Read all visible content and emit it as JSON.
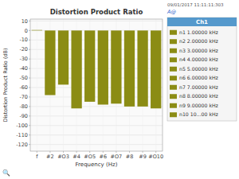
{
  "chart_data": {
    "type": "bar",
    "title": "Distortion Product Ratio",
    "xlabel": "Frequency (Hz)",
    "ylabel": "Distortion Product Ratio (dB)",
    "categories": [
      "f",
      "#2",
      "#O3",
      "#4",
      "#O5",
      "#6",
      "#O7",
      "#8",
      "#9",
      "#O10"
    ],
    "values": [
      0.5,
      -68,
      -57,
      -82,
      -75,
      -78,
      -77,
      -80,
      -80,
      -82
    ],
    "color": "#8B8C14",
    "ylim": [
      -127,
      12
    ],
    "yticks": [
      10,
      0,
      -10,
      -20,
      -30,
      -40,
      -50,
      -60,
      -70,
      -80,
      -90,
      -100,
      -110,
      -120
    ],
    "grid": true,
    "legend": "right",
    "legend_title": "Ch1",
    "legend_labels": [
      "n1 1.00000 kHz",
      "n2 2.00000 kHz",
      "n3 3.00000 kHz",
      "n4 4.00000 kHz",
      "n5 5.00000 kHz",
      "n6 6.00000 kHz",
      "n7 7.00000 kHz",
      "n8 8.00000 kHz",
      "n9 9.00000 kHz",
      "n10 10...00 kHz"
    ],
    "annotations": [
      "09/01/2017 11:11:11:303",
      "A@",
      "🔍"
    ]
  }
}
